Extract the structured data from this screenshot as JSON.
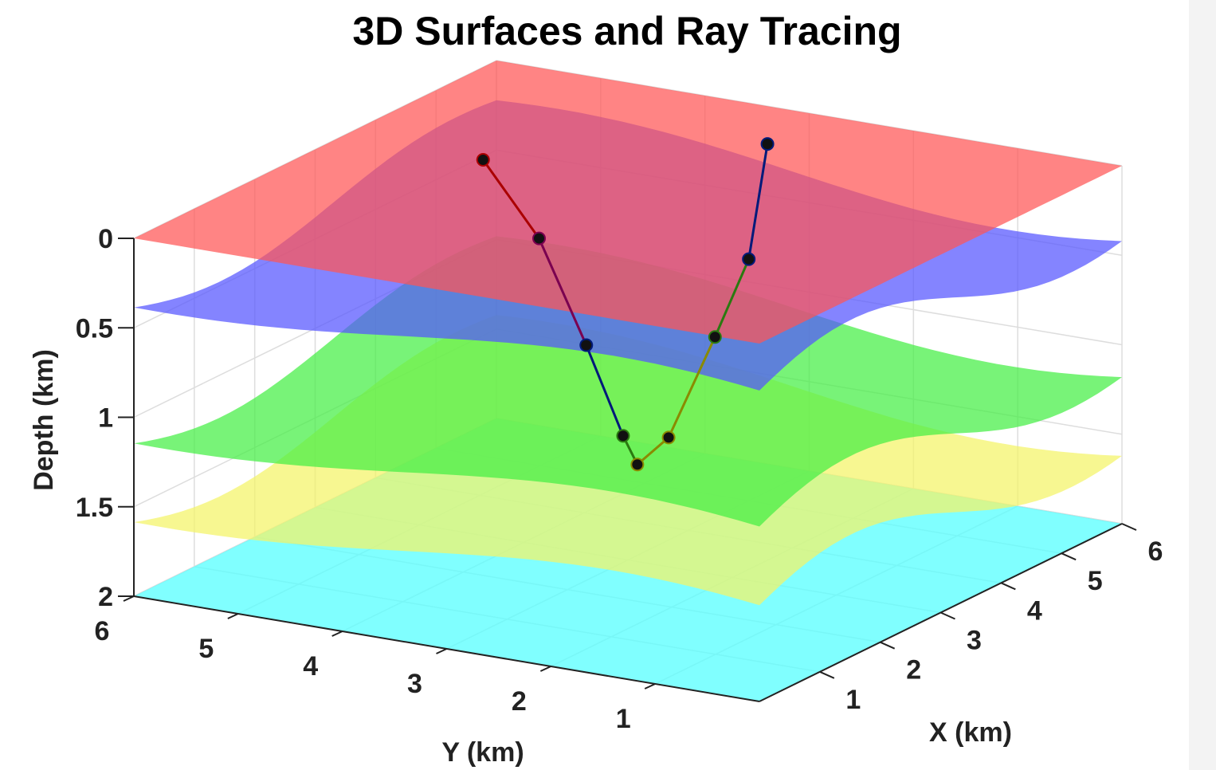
{
  "chart_data": {
    "type": "surface3d",
    "title": "3D Surfaces and Ray Tracing",
    "xlabel": "X (km)",
    "ylabel": "Y (km)",
    "zlabel": "Depth (km)",
    "xlim": [
      0,
      6
    ],
    "ylim": [
      0,
      6
    ],
    "zlim": [
      0,
      2
    ],
    "z_reversed": true,
    "grid": true,
    "x_ticks": [
      "1",
      "2",
      "3",
      "4",
      "5",
      "6"
    ],
    "y_ticks": [
      "1",
      "2",
      "3",
      "4",
      "5",
      "6"
    ],
    "z_ticks": [
      "0",
      "0.5",
      "1",
      "1.5",
      "2"
    ],
    "surfaces": [
      {
        "color": "#ff5555",
        "base_depth": 0.0,
        "amplitude": 0.0
      },
      {
        "color": "#5555ff",
        "base_depth": 0.32,
        "amplitude": 0.18
      },
      {
        "color": "#44ee44",
        "base_depth": 1.08,
        "amplitude": 0.18
      },
      {
        "color": "#f4f466",
        "base_depth": 1.52,
        "amplitude": 0.18
      },
      {
        "color": "#55ffff",
        "base_depth": 2.0,
        "amplitude": 0.0
      }
    ],
    "ray_paths": [
      {
        "points": [
          [
            3.45,
            4.65,
            0.0
          ],
          [
            3.6,
            4.2,
            0.42
          ],
          [
            3.95,
            3.95,
            1.05
          ],
          [
            4.3,
            3.8,
            1.6
          ],
          [
            4.45,
            3.75,
            1.78
          ],
          [
            4.45,
            3.45,
            1.6
          ],
          [
            4.7,
            3.15,
            1.05
          ],
          [
            5.0,
            3.0,
            0.65
          ],
          [
            5.05,
            2.85,
            0.0
          ]
        ],
        "segment_colors": [
          "#aa0000",
          "#7a0050",
          "#001a7a",
          "#2a7a10",
          "#8a8a00",
          "#8a8a00",
          "#2a7a10",
          "#001a7a"
        ]
      }
    ]
  }
}
